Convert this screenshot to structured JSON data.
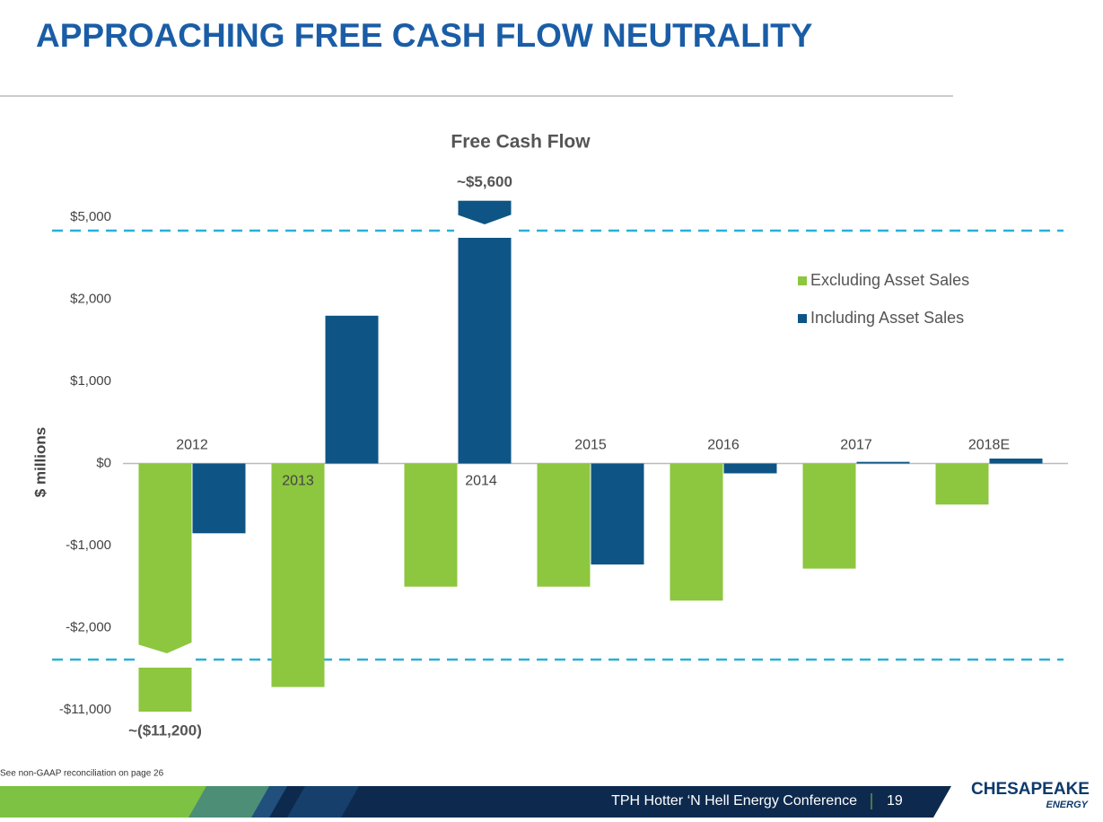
{
  "header": {
    "title": "APPROACHING FREE CASH FLOW NEUTRALITY"
  },
  "chart_data": {
    "type": "bar",
    "title": "Free Cash Flow",
    "y_axis_label": "$ millions",
    "categories": [
      "2012",
      "2013",
      "2014",
      "2015",
      "2016",
      "2017",
      "2018E"
    ],
    "series": [
      {
        "name": "Excluding Asset Sales",
        "color": "#8dc63f",
        "values": [
          -11200,
          -8500,
          -1500,
          -1500,
          -1670,
          -1280,
          -500
        ],
        "value_labels": [
          "~($11,200)",
          null,
          null,
          null,
          null,
          null,
          null
        ]
      },
      {
        "name": "Including Asset Sales",
        "color": "#0e5585",
        "values": [
          -850,
          1800,
          5600,
          -1230,
          -120,
          20,
          60
        ],
        "value_labels": [
          null,
          null,
          "~$5,600",
          null,
          null,
          null,
          null
        ]
      }
    ],
    "ylim": [
      -11000,
      5000
    ],
    "yticks": [
      {
        "value": -11000,
        "label": "-$11,000"
      },
      {
        "value": -2000,
        "label": "-$2,000"
      },
      {
        "value": -1000,
        "label": "-$1,000"
      },
      {
        "value": 0,
        "label": "$0"
      },
      {
        "value": 1000,
        "label": "$1,000"
      },
      {
        "value": 2000,
        "label": "$2,000"
      },
      {
        "value": 5000,
        "label": "$5,000"
      }
    ],
    "axis_breaks": true,
    "legend": "upper right"
  },
  "footer": {
    "note": "See non-GAAP reconciliation on page 26",
    "event": "TPH Hotter ‘N Hell Energy Conference",
    "page": "19",
    "logo": "CHESAPEAKE",
    "logo_sub": "ENERGY"
  }
}
